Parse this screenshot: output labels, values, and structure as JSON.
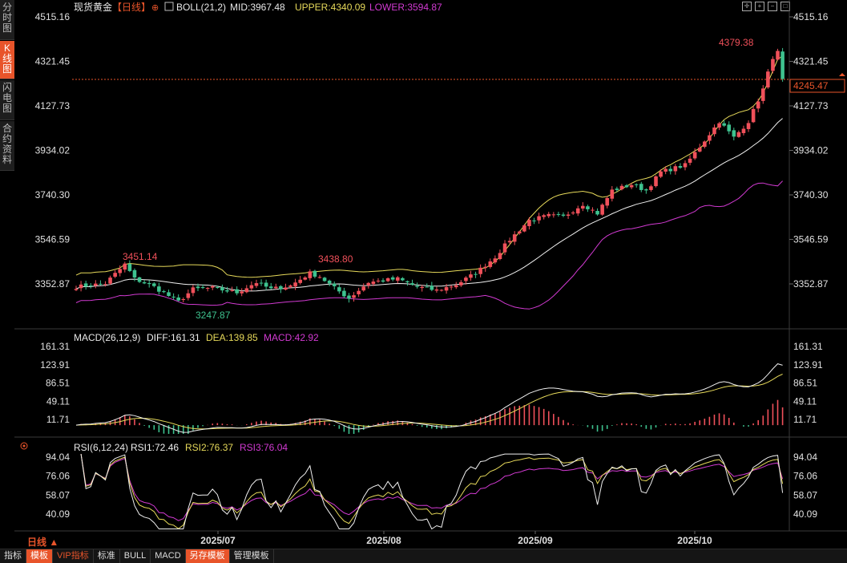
{
  "sidebar": {
    "tabs": [
      {
        "label": "分时图",
        "active": false
      },
      {
        "label": "K线图",
        "active": true
      },
      {
        "label": "闪电图",
        "active": false
      },
      {
        "label": "合约资料",
        "active": false
      }
    ]
  },
  "header": {
    "symbol": "现货黄金",
    "period_tag": "【日线】",
    "add_icon": "plus-circle-icon",
    "boll_label": "BOLL(21,2)",
    "mid_label": "MID:3967.48",
    "upper_label": "UPPER:4340.09",
    "lower_label": "LOWER:3594.87"
  },
  "window_controls": [
    "crosshair-icon",
    "zoom-in-icon",
    "zoom-out-icon",
    "maximize-icon"
  ],
  "price_axis": {
    "ticks": [
      "4515.16",
      "4321.45",
      "4127.73",
      "3934.02",
      "3740.30",
      "3546.59",
      "3352.87"
    ],
    "current_price": "4245.47"
  },
  "annotations": {
    "high1": "3451.14",
    "low1": "3247.87",
    "high2": "3438.80",
    "high3": "4379.38"
  },
  "macd_panel": {
    "label": "MACD(26,12,9)",
    "diff_label": "DIFF:161.31",
    "dea_label": "DEA:139.85",
    "macd_label": "MACD:42.92",
    "ticks": [
      "161.31",
      "123.91",
      "86.51",
      "49.11",
      "11.71"
    ]
  },
  "rsi_panel": {
    "label": "RSI(6,12,24)",
    "rsi1_label": "RSI1:72.46",
    "rsi2_label": "RSI2:76.37",
    "rsi3_label": "RSI3:76.04",
    "ticks": [
      "94.04",
      "76.06",
      "58.07",
      "40.09"
    ]
  },
  "x_axis": {
    "labels": [
      "2025/07",
      "2025/08",
      "2025/09",
      "2025/10"
    ]
  },
  "period_selector": "日线 ▲",
  "bottom_bar": {
    "buttons": [
      "指标",
      "模板",
      "VIP指标",
      "标准",
      "BULL",
      "MACD",
      "另存模板",
      "管理模板"
    ]
  },
  "colors": {
    "up": "#f0505a",
    "down": "#3ec28f",
    "upper": "#e6d95a",
    "mid": "#f0f0f0",
    "lower": "#d23ad2",
    "dea": "#e6d95a",
    "diff": "#f0f0f0",
    "rsi1": "#f0f0f0",
    "rsi2": "#e6d95a",
    "rsi3": "#d23ad2",
    "accent": "#e8542a"
  },
  "chart_data": {
    "type": "candlestick",
    "title": "现货黄金",
    "price_range": [
      3200,
      4515.16
    ],
    "x_months": [
      "2025/07",
      "2025/08",
      "2025/09",
      "2025/10"
    ],
    "anchors": [
      {
        "i": 0,
        "c": 3340
      },
      {
        "i": 6,
        "c": 3355
      },
      {
        "i": 10,
        "c": 3438
      },
      {
        "i": 12,
        "c": 3375
      },
      {
        "i": 16,
        "c": 3340
      },
      {
        "i": 21,
        "c": 3275
      },
      {
        "i": 24,
        "c": 3330
      },
      {
        "i": 28,
        "c": 3335
      },
      {
        "i": 33,
        "c": 3315
      },
      {
        "i": 37,
        "c": 3360
      },
      {
        "i": 40,
        "c": 3330
      },
      {
        "i": 44,
        "c": 3345
      },
      {
        "i": 48,
        "c": 3400
      },
      {
        "i": 50,
        "c": 3385
      },
      {
        "i": 53,
        "c": 3335
      },
      {
        "i": 56,
        "c": 3290
      },
      {
        "i": 60,
        "c": 3360
      },
      {
        "i": 66,
        "c": 3375
      },
      {
        "i": 70,
        "c": 3340
      },
      {
        "i": 74,
        "c": 3325
      },
      {
        "i": 78,
        "c": 3350
      },
      {
        "i": 82,
        "c": 3400
      },
      {
        "i": 86,
        "c": 3470
      },
      {
        "i": 89,
        "c": 3545
      },
      {
        "i": 93,
        "c": 3630
      },
      {
        "i": 97,
        "c": 3650
      },
      {
        "i": 100,
        "c": 3645
      },
      {
        "i": 104,
        "c": 3700
      },
      {
        "i": 107,
        "c": 3660
      },
      {
        "i": 110,
        "c": 3760
      },
      {
        "i": 114,
        "c": 3785
      },
      {
        "i": 117,
        "c": 3760
      },
      {
        "i": 120,
        "c": 3840
      },
      {
        "i": 125,
        "c": 3870
      },
      {
        "i": 128,
        "c": 3950
      },
      {
        "i": 132,
        "c": 4060
      },
      {
        "i": 135,
        "c": 3990
      },
      {
        "i": 138,
        "c": 4060
      },
      {
        "i": 141,
        "c": 4200
      },
      {
        "i": 143,
        "c": 4340
      },
      {
        "i": 144,
        "c": 4360
      },
      {
        "i": 145,
        "c": 4245
      }
    ],
    "boll": {
      "mid": 3967.48,
      "upper": 4340.09,
      "lower": 3594.87
    },
    "macd": {
      "diff": 161.31,
      "dea": 139.85,
      "macd": 42.92,
      "range": [
        0,
        165
      ]
    },
    "rsi": {
      "rsi1": 72.46,
      "rsi2": 76.37,
      "rsi3": 76.04,
      "range": [
        25,
        98
      ]
    }
  }
}
